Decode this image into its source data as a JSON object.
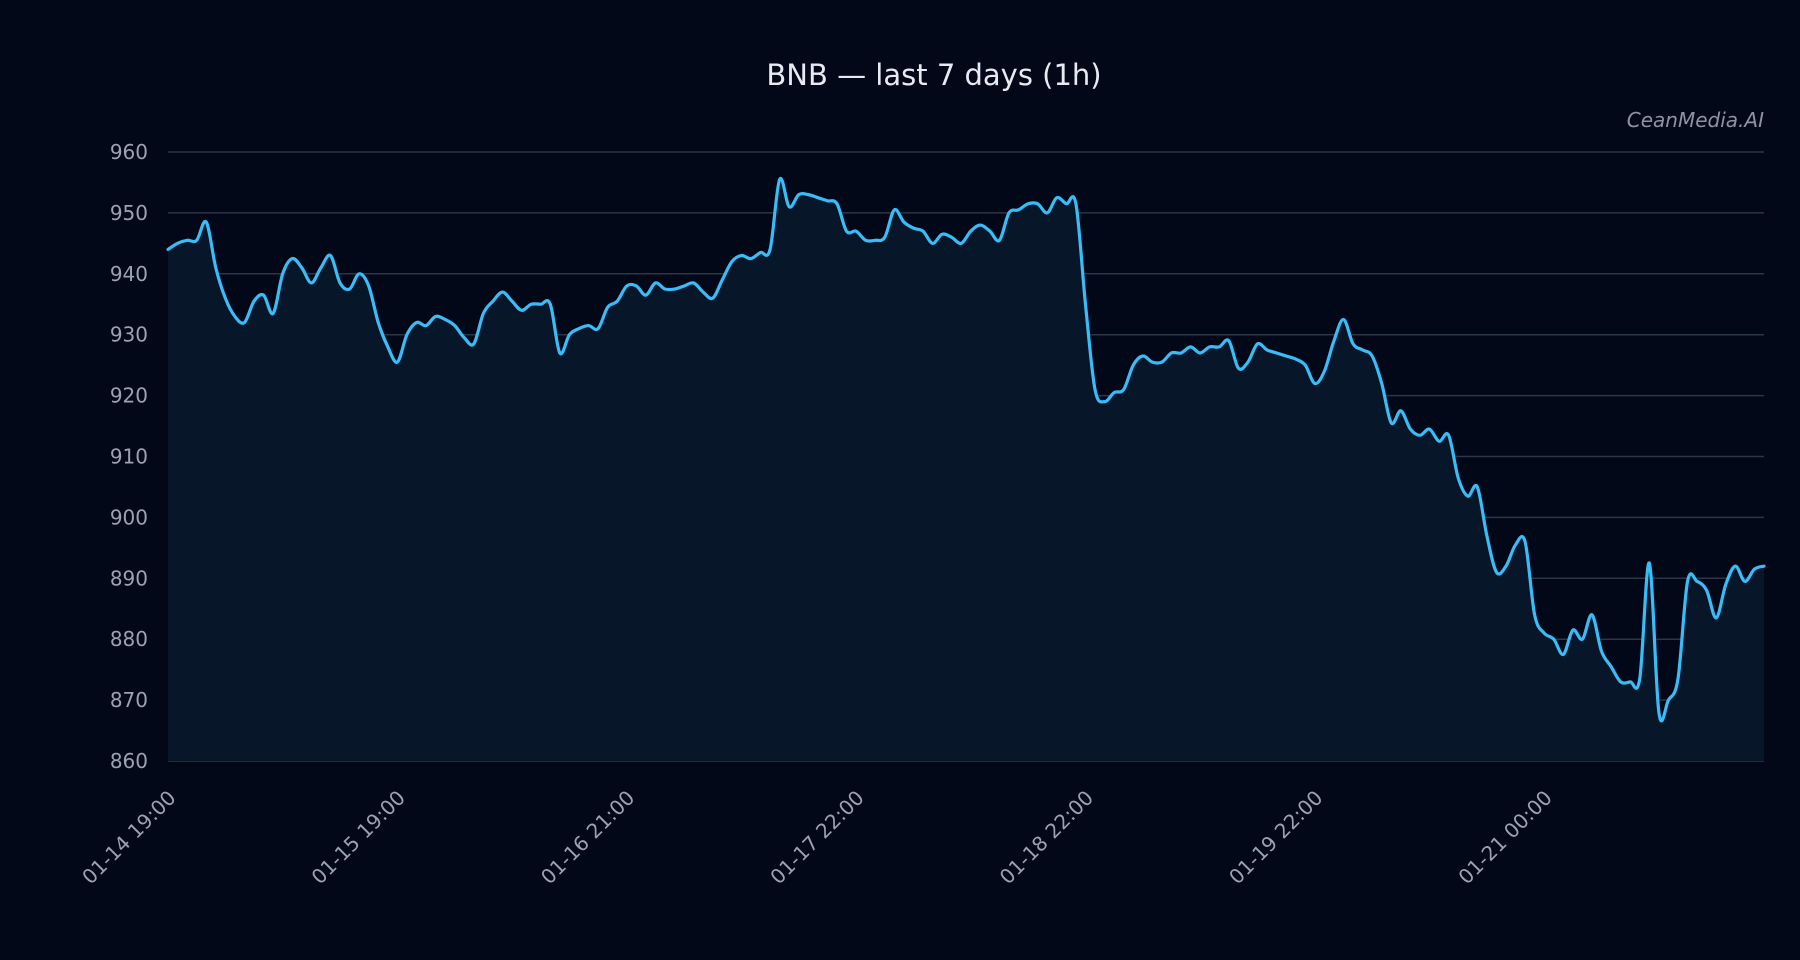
{
  "chart_data": {
    "type": "area",
    "title": "BNB — last 7 days (1h)",
    "watermark": "CeanMedia.AI",
    "xlabel": "",
    "ylabel": "",
    "ylim": [
      860,
      960
    ],
    "yticks": [
      860,
      870,
      880,
      890,
      900,
      910,
      920,
      930,
      940,
      950,
      960
    ],
    "grid": true,
    "x_tick_labels": [
      "01-14 19:00",
      "01-15 19:00",
      "01-16 21:00",
      "01-17 22:00",
      "01-18 22:00",
      "01-19 22:00",
      "01-21 00:00"
    ],
    "x_tick_hours": [
      0,
      24,
      48,
      72,
      96,
      120,
      144
    ],
    "x_hours_range": [
      0,
      167
    ],
    "colors": {
      "line": "#38bdf8",
      "fill": "#071628",
      "background": "#020817",
      "grid": "#2b3646"
    },
    "series": [
      {
        "values": [
          944,
          945,
          945.5,
          945.5,
          948.5,
          941,
          936,
          933,
          932,
          935.5,
          936.5,
          933.5,
          940,
          942.5,
          941,
          938.5,
          941,
          943,
          938.5,
          937.5,
          940,
          938,
          932,
          928,
          925.5,
          930,
          932,
          931.5,
          933,
          932.5,
          931.5,
          929.5,
          928.5,
          933.5,
          935.5,
          937,
          935.5,
          934,
          935,
          935,
          935,
          927,
          930,
          931,
          931.5,
          931,
          934.5,
          935.5,
          938,
          938,
          936.5,
          938.5,
          937.5,
          937.5,
          938,
          938.5,
          937,
          936,
          939,
          942,
          943,
          942.5,
          943.5,
          944,
          955.5,
          951,
          953,
          953,
          952.5,
          952,
          951.5,
          947,
          947,
          945.5,
          945.5,
          946,
          950.5,
          948.5,
          947.5,
          947,
          945,
          946.5,
          946,
          945,
          947,
          948,
          947,
          945.5,
          950,
          950.5,
          951.5,
          951.5,
          950,
          952.5,
          951.5,
          951.5,
          935,
          921,
          919,
          920.5,
          921,
          925,
          926.5,
          925.5,
          925.5,
          927,
          927,
          928,
          927,
          928,
          928,
          929,
          924.5,
          925.5,
          928.5,
          927.5,
          927,
          926.5,
          926,
          925,
          922,
          924,
          929,
          932.5,
          928.5,
          927.5,
          926.5,
          922,
          915.5,
          917.5,
          914.5,
          913.5,
          914.5,
          912.5,
          913.5,
          906.5,
          903.5,
          905,
          897,
          891,
          892,
          895.5,
          896,
          884,
          881,
          880,
          877.5,
          881.5,
          880,
          884,
          878,
          875.5,
          873,
          873,
          873.5,
          892.5,
          868,
          870,
          873.5,
          889.5,
          889.5,
          888,
          883.5,
          889,
          892,
          889.5,
          891.5,
          892
        ]
      }
    ]
  }
}
